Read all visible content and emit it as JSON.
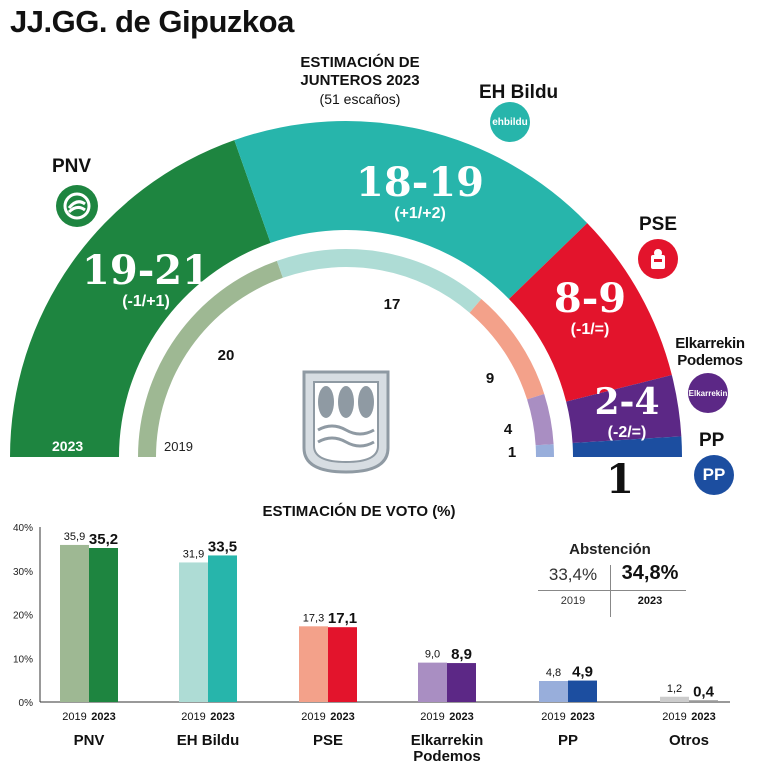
{
  "title": "JJ.GG. de Gipuzkoa",
  "seats_chart": {
    "title_lines": [
      "ESTIMACIÓN DE",
      "JUNTEROS 2023"
    ],
    "subtitle": "(51 escaños)",
    "total_seats": 51,
    "outer_year_label": "2023",
    "inner_year_label": "2019",
    "parties": [
      {
        "name": "PNV",
        "color": "#1e8540",
        "color_2019": "#9eb893",
        "estimate_2023": "19-21",
        "change": "(-1/+1)",
        "seats_mid_2023": 20,
        "seats_2019": 20,
        "seats_2019_label": "20"
      },
      {
        "name": "EH Bildu",
        "color": "#27b5ab",
        "color_2019": "#aedcd5",
        "estimate_2023": "18-19",
        "change": "(+1/+2)",
        "seats_mid_2023": 18.5,
        "seats_2019": 17,
        "seats_2019_label": "17"
      },
      {
        "name": "PSE",
        "color": "#e3142c",
        "color_2019": "#f3a18a",
        "estimate_2023": "8-9",
        "change": "(-1/=)",
        "seats_mid_2023": 8.5,
        "seats_2019": 9,
        "seats_2019_label": "9"
      },
      {
        "name": "Elkarrekin Podemos",
        "color": "#5c2886",
        "color_2019": "#a98ec2",
        "estimate_2023": "2-4",
        "change": "(-2/=)",
        "seats_mid_2023": 3,
        "seats_2019": 4,
        "seats_2019_label": "4"
      },
      {
        "name": "PP",
        "color": "#1c4ea0",
        "color_2019": "#98aedb",
        "estimate_2023": "1",
        "change": "",
        "seats_mid_2023": 1,
        "seats_2019": 1,
        "seats_2019_label": "1"
      }
    ]
  },
  "logos": {
    "pnv": {
      "icon": "pnv-logo-icon",
      "color": "#1e8540"
    },
    "bildu": {
      "icon": "ehbildu-logo-icon",
      "text": "ehbildu",
      "color": "#27b5ab"
    },
    "pse": {
      "icon": "pse-logo-icon",
      "color": "#e3142c"
    },
    "podemos": {
      "icon": "elkarrekin-logo-icon",
      "text": "Elkarrekin",
      "color": "#5c2886"
    },
    "pp": {
      "icon": "pp-logo-icon",
      "text": "PP",
      "color": "#1c4ea0"
    }
  },
  "chart_data": {
    "type": "bar",
    "title": "ESTIMACIÓN DE VOTO (%)",
    "categories": [
      "PNV",
      "EH Bildu",
      "PSE",
      "Elkarrekin Podemos",
      "PP",
      "Otros"
    ],
    "category_lines": [
      [
        "PNV"
      ],
      [
        "EH Bildu"
      ],
      [
        "PSE"
      ],
      [
        "Elkarrekin",
        "Podemos"
      ],
      [
        "PP"
      ],
      [
        "Otros"
      ]
    ],
    "series": [
      {
        "name": "2019",
        "values": [
          35.9,
          31.9,
          17.3,
          9.0,
          4.8,
          1.2
        ],
        "labels": [
          "35,9",
          "31,9",
          "17,3",
          "9,0",
          "4,8",
          "1,2"
        ]
      },
      {
        "name": "2023",
        "values": [
          35.2,
          33.5,
          17.1,
          8.9,
          4.9,
          0.4
        ],
        "labels": [
          "35,2",
          "33,5",
          "17,1",
          "8,9",
          "4,9",
          "0,4"
        ]
      }
    ],
    "colors_2019": [
      "#9eb893",
      "#aedcd5",
      "#f3a18a",
      "#a98ec2",
      "#98aedb",
      "#cccccc"
    ],
    "colors_2023": [
      "#1e8540",
      "#27b5ab",
      "#e3142c",
      "#5c2886",
      "#1c4ea0",
      "#999999"
    ],
    "yticks": [
      "0%",
      "10%",
      "20%",
      "30%",
      "40%"
    ],
    "ylim": [
      0,
      40
    ],
    "grid": false
  },
  "abstention": {
    "title": "Abstención",
    "value_2019": "33,4%",
    "value_2023": "34,8%",
    "year_2019": "2019",
    "year_2023": "2023"
  }
}
